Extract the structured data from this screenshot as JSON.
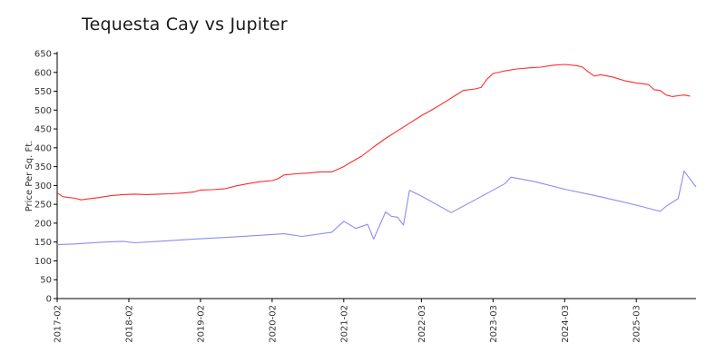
{
  "chart_data": {
    "type": "line",
    "title": "Tequesta Cay vs Jupiter",
    "xlabel": "",
    "ylabel": "Price Per Sq. Ft.",
    "ylim": [
      0,
      650
    ],
    "yticks": [
      0,
      50,
      100,
      150,
      200,
      250,
      300,
      350,
      400,
      450,
      500,
      550,
      600,
      650
    ],
    "xticks": [
      "2017-02",
      "2018-02",
      "2019-02",
      "2020-02",
      "2021-02",
      "2022-03",
      "2023-03",
      "2024-03",
      "2025-03"
    ],
    "grid": false,
    "legend": "none",
    "series": [
      {
        "color": "#ff2a2a",
        "points": [
          [
            "2017-02",
            280
          ],
          [
            "2017-03",
            270
          ],
          [
            "2017-05",
            266
          ],
          [
            "2017-06",
            262
          ],
          [
            "2017-07",
            264
          ],
          [
            "2017-09",
            268
          ],
          [
            "2017-11",
            273
          ],
          [
            "2018-01",
            276
          ],
          [
            "2018-03",
            277
          ],
          [
            "2018-05",
            276
          ],
          [
            "2018-07",
            277
          ],
          [
            "2018-09",
            278
          ],
          [
            "2018-11",
            280
          ],
          [
            "2019-01",
            283
          ],
          [
            "2019-02",
            288
          ],
          [
            "2019-04",
            289
          ],
          [
            "2019-06",
            291
          ],
          [
            "2019-08",
            299
          ],
          [
            "2019-10",
            305
          ],
          [
            "2019-12",
            310
          ],
          [
            "2020-02",
            313
          ],
          [
            "2020-03",
            318
          ],
          [
            "2020-04",
            328
          ],
          [
            "2020-06",
            331
          ],
          [
            "2020-08",
            333
          ],
          [
            "2020-10",
            336
          ],
          [
            "2020-12",
            336
          ],
          [
            "2021-02",
            350
          ],
          [
            "2021-03",
            360
          ],
          [
            "2021-05",
            378
          ],
          [
            "2021-07",
            402
          ],
          [
            "2021-09",
            425
          ],
          [
            "2021-11",
            445
          ],
          [
            "2022-01",
            465
          ],
          [
            "2022-03",
            485
          ],
          [
            "2022-05",
            503
          ],
          [
            "2022-07",
            522
          ],
          [
            "2022-09",
            542
          ],
          [
            "2022-10",
            552
          ],
          [
            "2022-12",
            556
          ],
          [
            "2023-01",
            560
          ],
          [
            "2023-02",
            582
          ],
          [
            "2023-03",
            597
          ],
          [
            "2023-05",
            604
          ],
          [
            "2023-07",
            609
          ],
          [
            "2023-09",
            612
          ],
          [
            "2023-11",
            614
          ],
          [
            "2024-01",
            619
          ],
          [
            "2024-03",
            621
          ],
          [
            "2024-05",
            618
          ],
          [
            "2024-06",
            614
          ],
          [
            "2024-07",
            601
          ],
          [
            "2024-08",
            590
          ],
          [
            "2024-09",
            594
          ],
          [
            "2024-11",
            588
          ],
          [
            "2025-01",
            578
          ],
          [
            "2025-03",
            572
          ],
          [
            "2025-05",
            568
          ],
          [
            "2025-06",
            554
          ],
          [
            "2025-07",
            552
          ],
          [
            "2025-08",
            540
          ],
          [
            "2025-09",
            536
          ],
          [
            "2025-10",
            538
          ],
          [
            "2025-11",
            540
          ],
          [
            "2025-12",
            537
          ]
        ]
      },
      {
        "color": "#8c8cf2",
        "points": [
          [
            "2017-02",
            143
          ],
          [
            "2017-05",
            145
          ],
          [
            "2017-09",
            149
          ],
          [
            "2018-01",
            152
          ],
          [
            "2018-03",
            148
          ],
          [
            "2018-07",
            152
          ],
          [
            "2019-01",
            158
          ],
          [
            "2019-07",
            163
          ],
          [
            "2020-02",
            170
          ],
          [
            "2020-04",
            172
          ],
          [
            "2020-07",
            165
          ],
          [
            "2020-12",
            176
          ],
          [
            "2021-02",
            205
          ],
          [
            "2021-04",
            186
          ],
          [
            "2021-06",
            197
          ],
          [
            "2021-07",
            158
          ],
          [
            "2021-09",
            230
          ],
          [
            "2021-10",
            218
          ],
          [
            "2021-11",
            216
          ],
          [
            "2021-12",
            195
          ],
          [
            "2022-01",
            287
          ],
          [
            "2022-03",
            272
          ],
          [
            "2022-08",
            228
          ],
          [
            "2022-12",
            262
          ],
          [
            "2023-05",
            305
          ],
          [
            "2023-06",
            322
          ],
          [
            "2023-10",
            310
          ],
          [
            "2024-03",
            290
          ],
          [
            "2024-09",
            270
          ],
          [
            "2025-03",
            248
          ],
          [
            "2025-07",
            231
          ],
          [
            "2025-08",
            245
          ],
          [
            "2025-10",
            265
          ],
          [
            "2025-11",
            338
          ],
          [
            "2026-01",
            296
          ]
        ]
      }
    ]
  }
}
